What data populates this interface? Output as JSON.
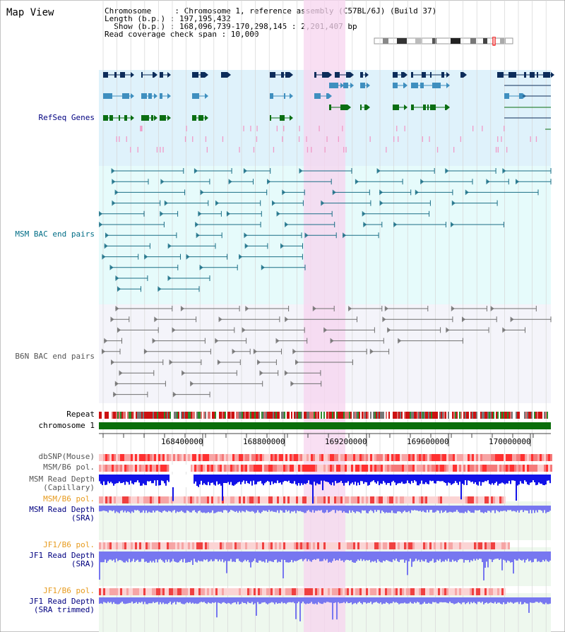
{
  "title": "Map View",
  "info": {
    "line1": "Chromosome     : Chromosome 1, reference assembly (C57BL/6J) (Build 37)",
    "line2": "Length (b.p.) : 197,195,432",
    "line3": "  Show (b.p.) : 168,096,739-170,298,145 : 2,201,407 bp",
    "line4": "Read coverage check span : 10,000"
  },
  "track_labels": {
    "refseq": "RefSeq Genes",
    "msm_bac": "MSM BAC end pairs",
    "b6n_bac": "B6N BAC end pairs",
    "repeat": "Repeat",
    "chromosome": "chromosome 1",
    "dbsnp": "dbSNP(Mouse)",
    "msm_b6_pol": "MSM/B6 pol.",
    "msm_depth_cap_1": "MSM Read Depth",
    "msm_depth_cap_2": "(Capillary)",
    "msm_b6_pol_2": "MSM/B6 pol.",
    "msm_depth_sra_1": "MSM Read Depth",
    "msm_depth_sra_2": "(SRA)",
    "jf1_b6_pol": "JF1/B6 pol.",
    "jf1_depth_sra_1": "JF1 Read Depth",
    "jf1_depth_sra_2": "(SRA)",
    "jf1_b6_pol_2": "JF1/B6 pol.",
    "jf1_depth_trim_1": "JF1 Read Depth",
    "jf1_depth_trim_2": "(SRA trimmed)"
  },
  "axis": {
    "ticks": [
      "168400000",
      "168800000",
      "169200000",
      "169600000",
      "170000000"
    ]
  },
  "colors": {
    "refseq_bg": "#dff2fb",
    "msm_bg": "#e6fbfb",
    "b6n_bg": "#f4f4fa",
    "highlight": "#f7d4ef",
    "gene_navy": "#0c2c5a",
    "gene_blue": "#3f8fbf",
    "gene_green": "#0a6e12",
    "msm_pair": "#1a6e86",
    "b6n_pair": "#707070",
    "chromosome": "#0b6e0b",
    "depth_dark": "#1212e8",
    "depth_light": "#7777f0",
    "label_dark": "#000000",
    "label_orange": "#e79b1e",
    "label_navy": "#000080",
    "label_teal": "#006d86",
    "label_gray": "#555555"
  }
}
